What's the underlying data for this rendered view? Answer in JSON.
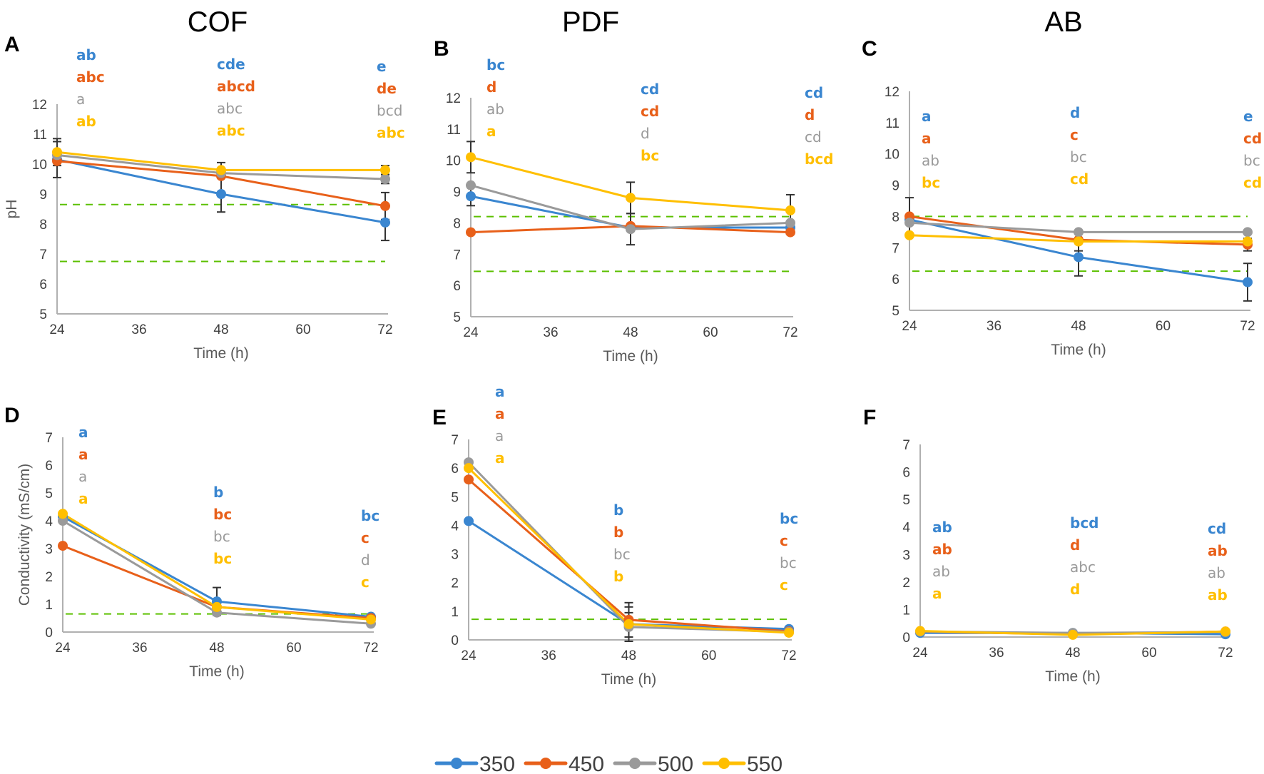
{
  "series_colors": {
    "350": "#3a86d0",
    "450": "#e8601a",
    "500": "#9a9a9a",
    "550": "#ffbf00"
  },
  "threshold_color": "#5cc000",
  "column_titles": [
    "COF",
    "PDF",
    "AB"
  ],
  "legend": {
    "placement": "bottom-center",
    "items": [
      {
        "label": "350",
        "key": "350"
      },
      {
        "label": "450",
        "key": "450"
      },
      {
        "label": "500",
        "key": "500"
      },
      {
        "label": "550",
        "key": "550"
      }
    ]
  },
  "chart_data": [
    {
      "panel": "A",
      "column": "COF",
      "type": "line",
      "xlabel": "Time (h)",
      "ylabel": "pH",
      "x": [
        24,
        48,
        72
      ],
      "xticks": [
        24,
        36,
        48,
        60,
        72
      ],
      "xlim": [
        24,
        72
      ],
      "ylim": [
        5,
        12
      ],
      "yticks": [
        5,
        6,
        7,
        8,
        9,
        10,
        11,
        12
      ],
      "thresholds": [
        8.65,
        6.75
      ],
      "series": [
        {
          "name": "350",
          "values": [
            10.15,
            9.0,
            8.05
          ],
          "errors": [
            0.6,
            0.6,
            0.6
          ],
          "letters": [
            "ab",
            "cde",
            "e"
          ]
        },
        {
          "name": "450",
          "values": [
            10.1,
            9.6,
            8.6
          ],
          "errors": [
            0.0,
            0.0,
            0.45
          ],
          "letters": [
            "abc",
            "abcd",
            "de"
          ]
        },
        {
          "name": "500",
          "values": [
            10.3,
            9.7,
            9.5
          ],
          "errors": [
            0.0,
            0.0,
            0.15
          ],
          "letters": [
            "a",
            "abc",
            "bcd"
          ]
        },
        {
          "name": "550",
          "values": [
            10.4,
            9.8,
            9.8
          ],
          "errors": [
            0.45,
            0.25,
            0.15
          ],
          "letters": [
            "ab",
            "abc",
            "abc"
          ]
        }
      ]
    },
    {
      "panel": "B",
      "column": "PDF",
      "type": "line",
      "xlabel": "Time (h)",
      "ylabel": "",
      "x": [
        24,
        48,
        72
      ],
      "xticks": [
        24,
        36,
        48,
        60,
        72
      ],
      "xlim": [
        24,
        72
      ],
      "ylim": [
        5,
        12
      ],
      "yticks": [
        5,
        6,
        7,
        8,
        9,
        10,
        11,
        12
      ],
      "thresholds": [
        8.2,
        6.45
      ],
      "series": [
        {
          "name": "350",
          "values": [
            8.85,
            7.85,
            7.85
          ],
          "errors": [
            0.3,
            0.0,
            0.0
          ],
          "letters": [
            "bc",
            "cd",
            "cd"
          ]
        },
        {
          "name": "450",
          "values": [
            7.7,
            7.9,
            7.7
          ],
          "errors": [
            0.0,
            0.0,
            0.0
          ],
          "letters": [
            "d",
            "cd",
            "d"
          ]
        },
        {
          "name": "500",
          "values": [
            9.2,
            7.8,
            8.0
          ],
          "errors": [
            0.0,
            0.5,
            0.0
          ],
          "letters": [
            "ab",
            "d",
            "cd"
          ]
        },
        {
          "name": "550",
          "values": [
            10.1,
            8.8,
            8.4
          ],
          "errors": [
            0.5,
            0.5,
            0.5
          ],
          "letters": [
            "a",
            "bc",
            "bcd"
          ]
        }
      ]
    },
    {
      "panel": "C",
      "column": "AB",
      "type": "line",
      "xlabel": "Time (h)",
      "ylabel": "",
      "x": [
        24,
        48,
        72
      ],
      "xticks": [
        24,
        36,
        48,
        60,
        72
      ],
      "xlim": [
        24,
        72
      ],
      "ylim": [
        5,
        12
      ],
      "yticks": [
        5,
        6,
        7,
        8,
        9,
        10,
        11,
        12
      ],
      "thresholds": [
        8.0,
        6.25
      ],
      "series": [
        {
          "name": "350",
          "values": [
            7.9,
            6.7,
            5.9
          ],
          "errors": [
            0.0,
            0.6,
            0.6
          ],
          "letters": [
            "a",
            "d",
            "e"
          ]
        },
        {
          "name": "450",
          "values": [
            8.0,
            7.25,
            7.1
          ],
          "errors": [
            0.6,
            0.0,
            0.2
          ],
          "letters": [
            "a",
            "c",
            "cd"
          ]
        },
        {
          "name": "500",
          "values": [
            7.8,
            7.5,
            7.5
          ],
          "errors": [
            0.0,
            0.0,
            0.0
          ],
          "letters": [
            "ab",
            "bc",
            "bc"
          ]
        },
        {
          "name": "550",
          "values": [
            7.4,
            7.2,
            7.2
          ],
          "errors": [
            0.0,
            0.3,
            0.0
          ],
          "letters": [
            "bc",
            "cd",
            "cd"
          ]
        }
      ]
    },
    {
      "panel": "D",
      "column": "COF",
      "type": "line",
      "xlabel": "Time (h)",
      "ylabel": "Conductivity (mS/cm)",
      "x": [
        24,
        48,
        72
      ],
      "xticks": [
        24,
        36,
        48,
        60,
        72
      ],
      "xlim": [
        24,
        72
      ],
      "ylim": [
        0,
        7
      ],
      "yticks": [
        0,
        1,
        2,
        3,
        4,
        5,
        6,
        7
      ],
      "thresholds": [
        0.65
      ],
      "series": [
        {
          "name": "350",
          "values": [
            4.15,
            1.1,
            0.55
          ],
          "errors": [
            0.0,
            0.5,
            0.0
          ],
          "letters": [
            "a",
            "b",
            "bc"
          ]
        },
        {
          "name": "450",
          "values": [
            3.1,
            0.9,
            0.5
          ],
          "errors": [
            0.0,
            0.0,
            0.0
          ],
          "letters": [
            "a",
            "bc",
            "c"
          ]
        },
        {
          "name": "500",
          "values": [
            4.0,
            0.7,
            0.3
          ],
          "errors": [
            0.0,
            0.0,
            0.0
          ],
          "letters": [
            "a",
            "bc",
            "d"
          ]
        },
        {
          "name": "550",
          "values": [
            4.25,
            0.9,
            0.45
          ],
          "errors": [
            0.0,
            0.0,
            0.0
          ],
          "letters": [
            "a",
            "bc",
            "c"
          ]
        }
      ]
    },
    {
      "panel": "E",
      "column": "PDF",
      "type": "line",
      "xlabel": "Time (h)",
      "ylabel": "",
      "x": [
        24,
        48,
        72
      ],
      "xticks": [
        24,
        36,
        48,
        60,
        72
      ],
      "xlim": [
        24,
        72
      ],
      "ylim": [
        0,
        7
      ],
      "yticks": [
        0,
        1,
        2,
        3,
        4,
        5,
        6,
        7
      ],
      "thresholds": [
        0.72
      ],
      "series": [
        {
          "name": "350",
          "values": [
            4.15,
            0.55,
            0.38
          ],
          "errors": [
            0.0,
            0.0,
            0.0
          ],
          "letters": [
            "a",
            "b",
            "bc"
          ]
        },
        {
          "name": "450",
          "values": [
            5.6,
            0.7,
            0.3
          ],
          "errors": [
            0.0,
            0.6,
            0.0
          ],
          "letters": [
            "a",
            "b",
            "c"
          ]
        },
        {
          "name": "500",
          "values": [
            6.2,
            0.45,
            0.28
          ],
          "errors": [
            0.0,
            0.5,
            0.0
          ],
          "letters": [
            "a",
            "bc",
            "bc"
          ]
        },
        {
          "name": "550",
          "values": [
            6.0,
            0.55,
            0.25
          ],
          "errors": [
            0.0,
            0.6,
            0.0
          ],
          "letters": [
            "a",
            "b",
            "c"
          ]
        }
      ]
    },
    {
      "panel": "F",
      "column": "AB",
      "type": "line",
      "xlabel": "Time (h)",
      "ylabel": "",
      "x": [
        24,
        48,
        72
      ],
      "xticks": [
        24,
        36,
        48,
        60,
        72
      ],
      "xlim": [
        24,
        72
      ],
      "ylim": [
        0,
        7
      ],
      "yticks": [
        0,
        1,
        2,
        3,
        4,
        5,
        6,
        7
      ],
      "thresholds": [],
      "series": [
        {
          "name": "350",
          "values": [
            0.15,
            0.15,
            0.1
          ],
          "errors": [
            0.0,
            0.0,
            0.0
          ],
          "letters": [
            "ab",
            "bcd",
            "cd"
          ]
        },
        {
          "name": "450",
          "values": [
            0.2,
            0.1,
            0.2
          ],
          "errors": [
            0.0,
            0.0,
            0.0
          ],
          "letters": [
            "ab",
            "d",
            "ab"
          ]
        },
        {
          "name": "500",
          "values": [
            0.2,
            0.15,
            0.18
          ],
          "errors": [
            0.0,
            0.0,
            0.0
          ],
          "letters": [
            "ab",
            "abc",
            "ab"
          ]
        },
        {
          "name": "550",
          "values": [
            0.22,
            0.08,
            0.2
          ],
          "errors": [
            0.0,
            0.0,
            0.0
          ],
          "letters": [
            "a",
            "d",
            "ab"
          ]
        }
      ]
    }
  ]
}
